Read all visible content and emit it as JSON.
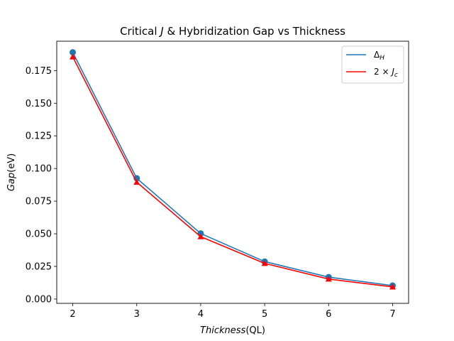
{
  "chart_data": {
    "type": "line",
    "title": "Critical J & Hybridization Gap vs Thickness",
    "title_parts": {
      "pre": "Critical ",
      "italic": "J",
      "post": " & Hybridization Gap vs Thickness"
    },
    "xlabel": "Thickness(QL)",
    "xlabel_parts": {
      "italic": "Thickness",
      "rest": "(QL)"
    },
    "ylabel": "Gap(eV)",
    "ylabel_parts": {
      "italic": "Gap",
      "rest": "(eV)"
    },
    "x": [
      2,
      3,
      4,
      5,
      6,
      7
    ],
    "xlim": [
      1.75,
      7.25
    ],
    "ylim": [
      -0.0033,
      0.1975
    ],
    "xticks": [
      2,
      3,
      4,
      5,
      6,
      7
    ],
    "yticks": [
      0.0,
      0.025,
      0.05,
      0.075,
      0.1,
      0.125,
      0.15,
      0.175
    ],
    "ytick_labels": [
      "0.000",
      "0.025",
      "0.050",
      "0.075",
      "0.100",
      "0.125",
      "0.150",
      "0.175"
    ],
    "grid": false,
    "legend_position": "top-right",
    "series": [
      {
        "name": "ΔH",
        "legend_parts": {
          "base": "Δ",
          "sub": "H"
        },
        "values": [
          0.189,
          0.0925,
          0.0502,
          0.0287,
          0.0168,
          0.0103
        ],
        "color": "#1f77b4",
        "marker": "circle"
      },
      {
        "name": "2×Jc",
        "legend_parts": {
          "pre": "2 × ",
          "italic": "J",
          "sub": "c"
        },
        "values": [
          0.1855,
          0.0895,
          0.0478,
          0.0273,
          0.0153,
          0.0093
        ],
        "color": "#ff0000",
        "marker": "triangle"
      }
    ]
  }
}
